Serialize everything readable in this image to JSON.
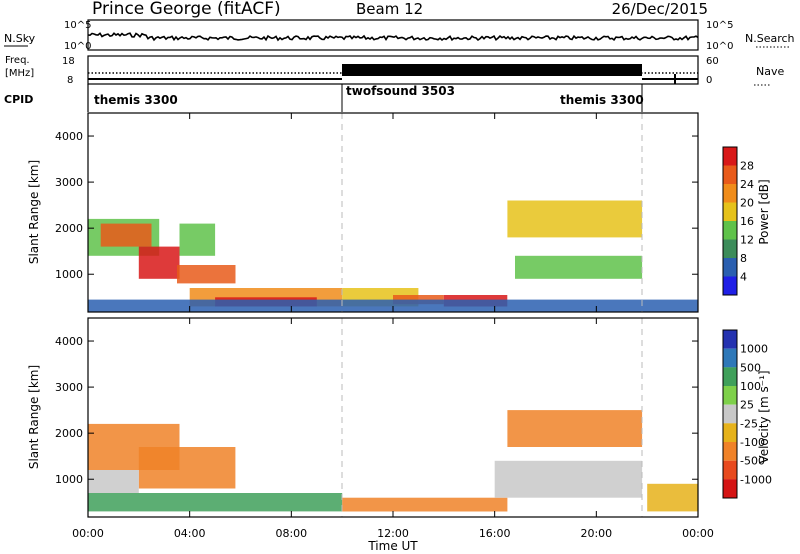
{
  "header": {
    "station": "Prince George (fitACF)",
    "beam": "Beam 12",
    "date": "26/Dec/2015"
  },
  "noise_panel": {
    "left_label": "N.Sky",
    "right_label": "N.Search",
    "left_ticks": [
      "10^5",
      "10^0"
    ],
    "right_ticks": [
      "10^5",
      "10^0"
    ]
  },
  "freq_panel": {
    "left_label_1": "Freq.",
    "left_label_2": "[MHz]",
    "right_label": "Nave",
    "left_ticks": [
      "18",
      "8"
    ],
    "right_ticks": [
      "60",
      "0"
    ]
  },
  "cpid_panel": {
    "label": "CPID",
    "programs": [
      {
        "name": "themis 3300",
        "start": 0.0,
        "end": 10.0
      },
      {
        "name": "twofsound 3503",
        "start": 10.0,
        "end": 21.9
      },
      {
        "name": "themis 3300",
        "start": 21.9,
        "end": 24.0
      }
    ]
  },
  "axes": {
    "ylabel": "Slant Range [km]",
    "xlabel": "Time UT",
    "xticks": [
      "00:00",
      "04:00",
      "08:00",
      "12:00",
      "16:00",
      "20:00",
      "00:00"
    ],
    "yticks": [
      "1000",
      "2000",
      "3000",
      "4000"
    ]
  },
  "power_colorbar": {
    "label": "Power [dB]",
    "ticks": [
      "4",
      "8",
      "12",
      "16",
      "20",
      "24",
      "28"
    ],
    "colors": [
      "#1f1fe6",
      "#2a5fb0",
      "#3c8c5a",
      "#5fc24a",
      "#e6c21a",
      "#f08c1a",
      "#e85a1a",
      "#d81818"
    ]
  },
  "velocity_colorbar": {
    "label": "Velocity [m s⁻¹]",
    "ticks": [
      "1000",
      "500",
      "100",
      "25",
      "-25",
      "-100",
      "-500",
      "-1000"
    ],
    "colors": [
      "#2432b0",
      "#2e78b8",
      "#3fa05a",
      "#7ed04a",
      "#c8c8c8",
      "#e6b21a",
      "#f08228",
      "#e84a1e",
      "#d41414"
    ]
  },
  "chart_data": [
    {
      "type": "heatmap",
      "title": "Power",
      "xlabel": "Time UT",
      "ylabel": "Slant Range [km]",
      "xlim": [
        0,
        24
      ],
      "ylim": [
        180,
        4500
      ],
      "colorbar_label": "Power [dB]",
      "colorbar_range": [
        0,
        32
      ],
      "regions": [
        {
          "t0": 0.0,
          "t1": 2.8,
          "r0": 1400,
          "r1": 2200,
          "value": 14
        },
        {
          "t0": 0.5,
          "t1": 2.5,
          "r0": 1600,
          "r1": 2100,
          "value": 26
        },
        {
          "t0": 2.0,
          "t1": 3.6,
          "r0": 900,
          "r1": 1600,
          "value": 28
        },
        {
          "t0": 3.5,
          "t1": 5.8,
          "r0": 800,
          "r1": 1200,
          "value": 26
        },
        {
          "t0": 3.6,
          "t1": 5.0,
          "r0": 1400,
          "r1": 2100,
          "value": 12
        },
        {
          "t0": 4.0,
          "t1": 10.0,
          "r0": 300,
          "r1": 700,
          "value": 20
        },
        {
          "t0": 5.0,
          "t1": 9.0,
          "r0": 300,
          "r1": 500,
          "value": 28
        },
        {
          "t0": 10.0,
          "t1": 13.0,
          "r0": 300,
          "r1": 700,
          "value": 18
        },
        {
          "t0": 12.0,
          "t1": 14.0,
          "r0": 350,
          "r1": 550,
          "value": 26
        },
        {
          "t0": 14.0,
          "t1": 16.5,
          "r0": 300,
          "r1": 550,
          "value": 30
        },
        {
          "t0": 16.5,
          "t1": 21.8,
          "r0": 1800,
          "r1": 2600,
          "value": 18
        },
        {
          "t0": 16.8,
          "t1": 21.8,
          "r0": 900,
          "r1": 1400,
          "value": 14
        },
        {
          "t0": 0.0,
          "t1": 24.0,
          "r0": 180,
          "r1": 450,
          "value": 6
        }
      ]
    },
    {
      "type": "heatmap",
      "title": "Velocity",
      "xlabel": "Time UT",
      "ylabel": "Slant Range [km]",
      "xlim": [
        0,
        24
      ],
      "ylim": [
        180,
        4500
      ],
      "colorbar_label": "Velocity [m s⁻¹]",
      "colorbar_range": [
        -1000,
        1000
      ],
      "regions": [
        {
          "t0": 0.0,
          "t1": 3.6,
          "r0": 1200,
          "r1": 2200,
          "value": -300
        },
        {
          "t0": 2.0,
          "t1": 5.8,
          "r0": 800,
          "r1": 1700,
          "value": -200
        },
        {
          "t0": 0.0,
          "t1": 2.0,
          "r0": 700,
          "r1": 1200,
          "value": 0
        },
        {
          "t0": 0.0,
          "t1": 10.0,
          "r0": 300,
          "r1": 700,
          "value": 60
        },
        {
          "t0": 10.0,
          "t1": 16.5,
          "r0": 300,
          "r1": 600,
          "value": -120
        },
        {
          "t0": 16.5,
          "t1": 21.8,
          "r0": 1700,
          "r1": 2500,
          "value": -250
        },
        {
          "t0": 16.0,
          "t1": 21.8,
          "r0": 600,
          "r1": 1400,
          "value": 0
        },
        {
          "t0": 22.0,
          "t1": 24.0,
          "r0": 300,
          "r1": 900,
          "value": -50
        }
      ]
    }
  ]
}
